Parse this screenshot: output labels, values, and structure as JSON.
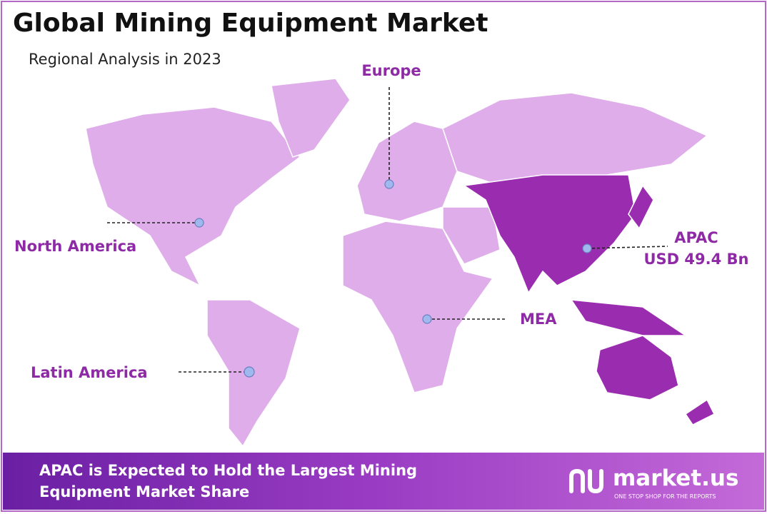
{
  "header": {
    "title": "Global Mining Equipment Market",
    "subtitle": "Regional Analysis in 2023"
  },
  "regions": [
    {
      "name": "Europe"
    },
    {
      "name": "North America"
    },
    {
      "name": "APAC",
      "value_label": "USD 49.4 Bn"
    },
    {
      "name": "MEA"
    },
    {
      "name": "Latin America"
    }
  ],
  "footer": {
    "lines": [
      "APAC is Expected to Hold the Largest Mining",
      "Equipment Market Share"
    ],
    "logo": "market.us",
    "tagline": "ONE STOP SHOP FOR THE REPORTS"
  }
}
